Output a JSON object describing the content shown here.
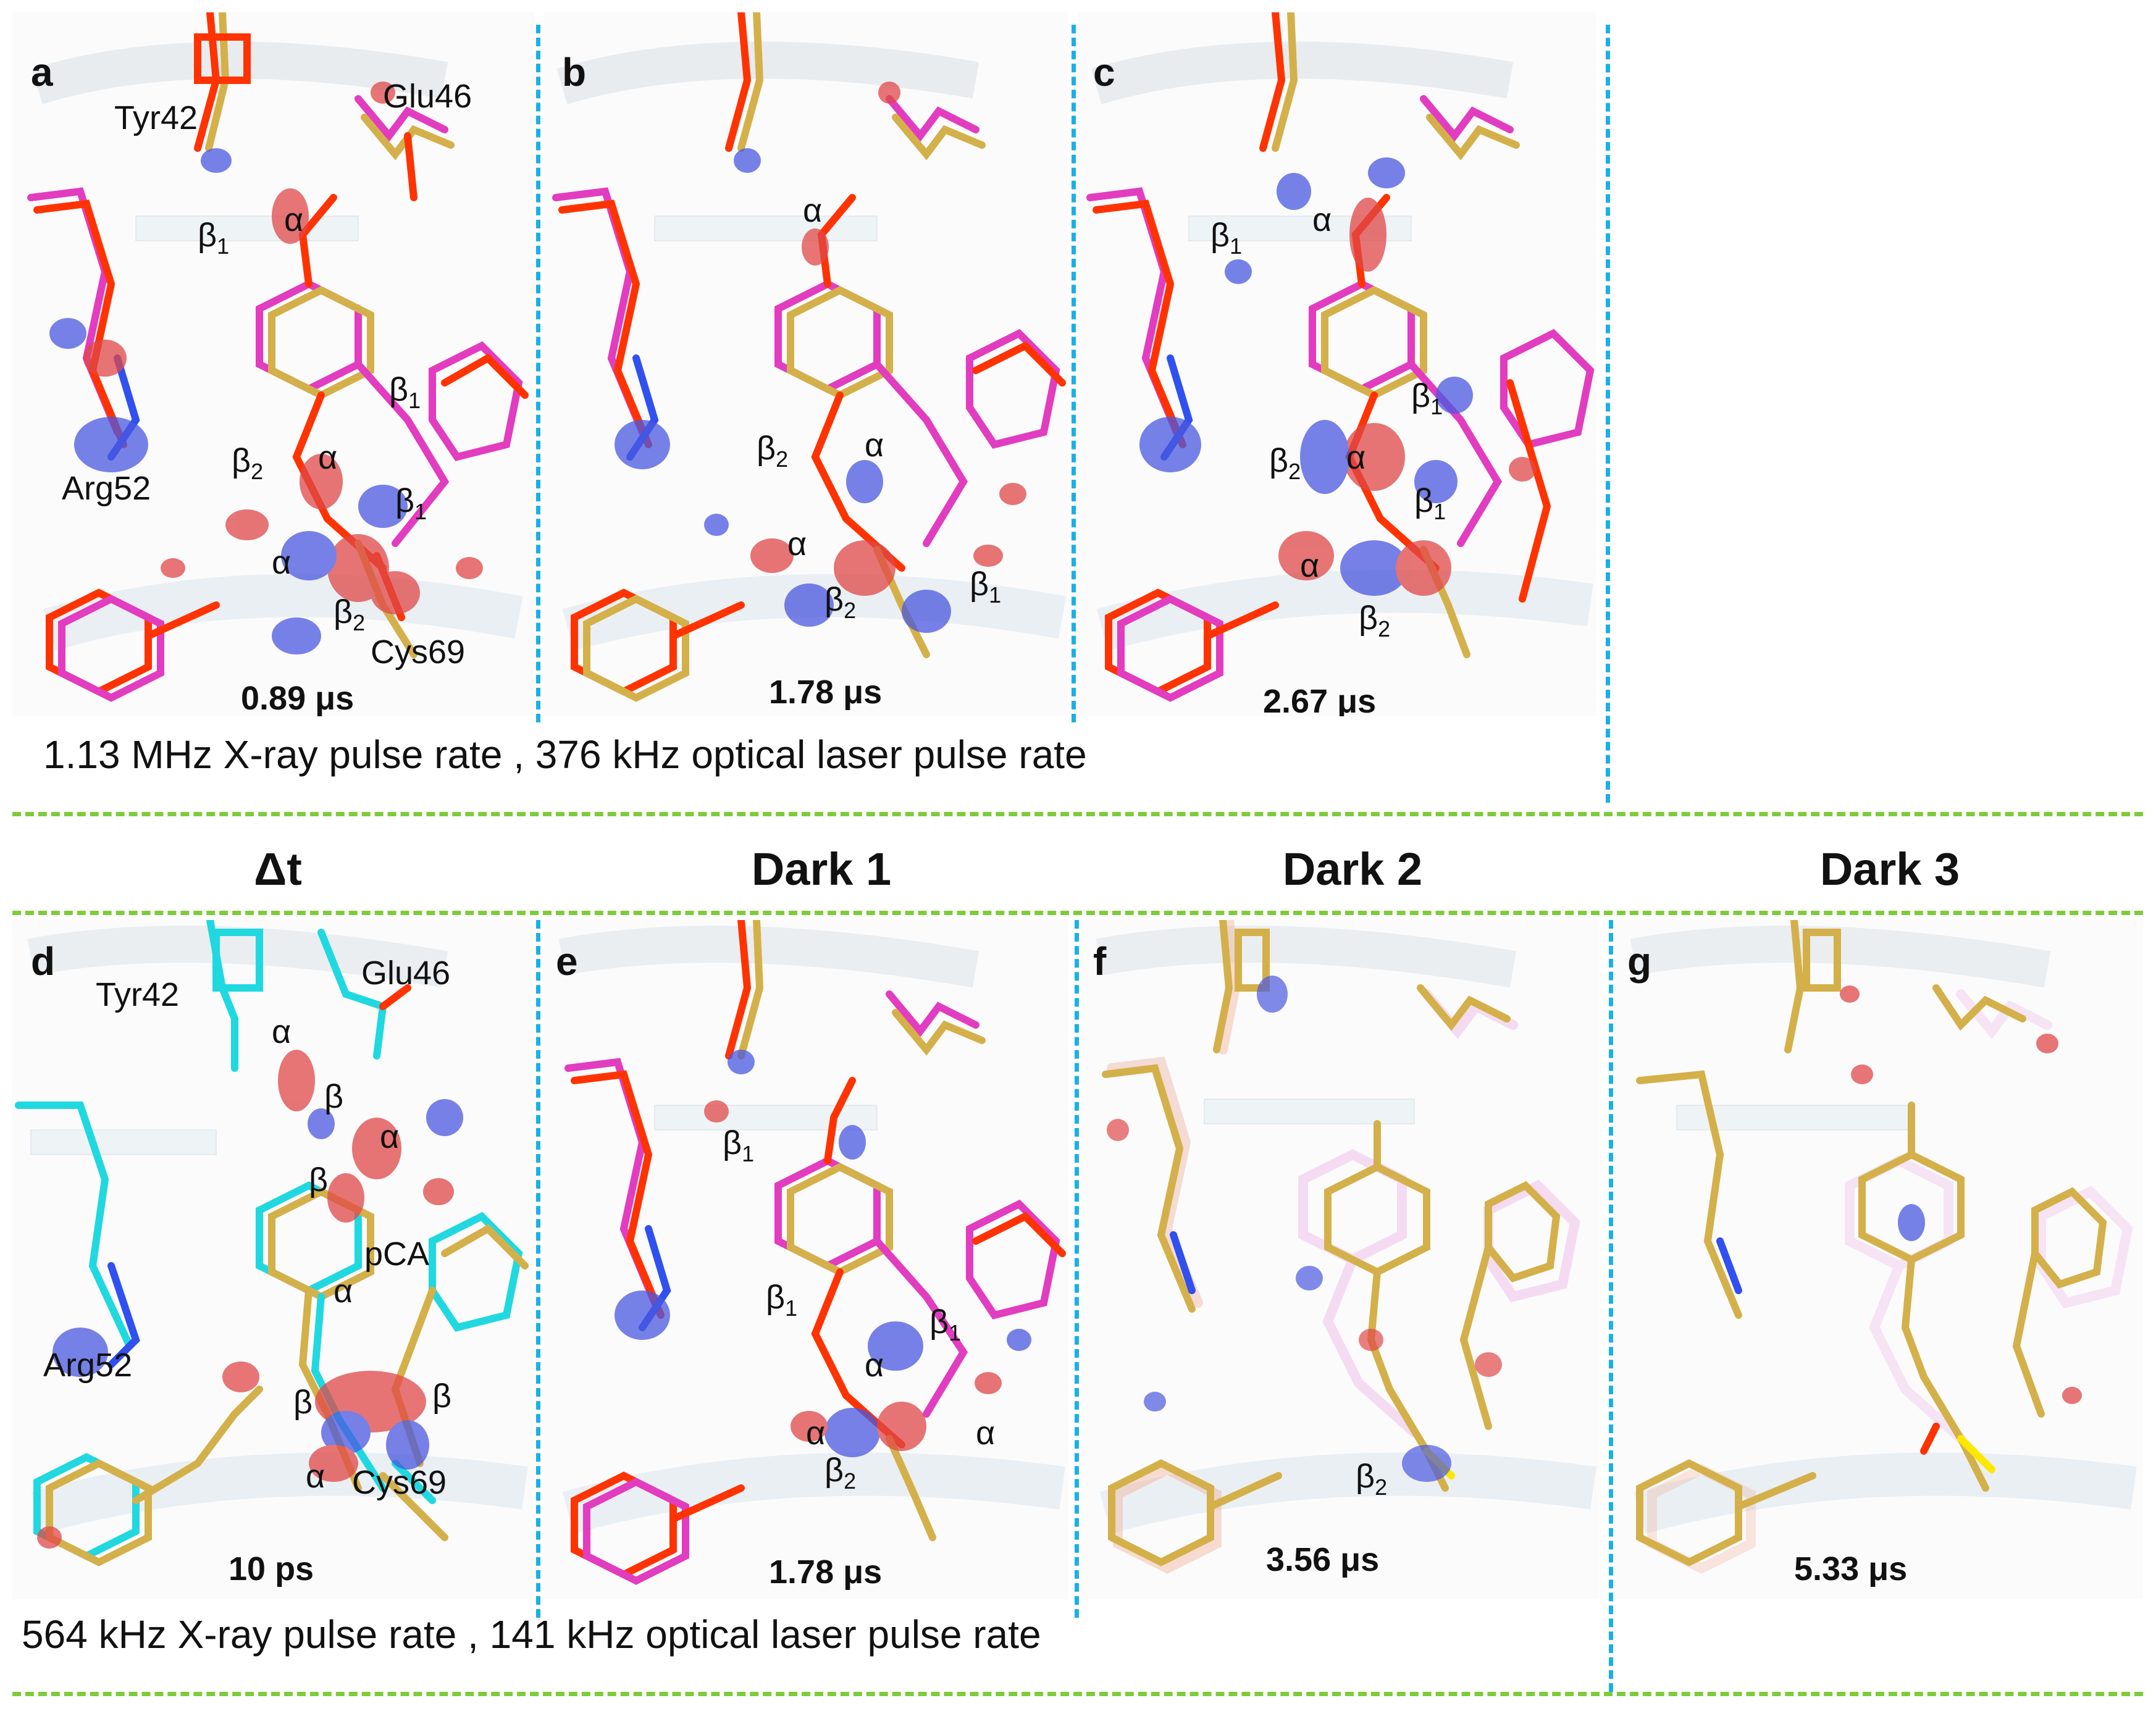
{
  "colors": {
    "separator_blue": "#1ab0e6",
    "separator_green": "#7ccc3a",
    "model_gold": "#d4b04a",
    "model_red": "#ff3300",
    "model_magenta": "#e23cc0",
    "model_cyan": "#20d8e0",
    "density_negative": "#e04848",
    "density_positive": "#4a58e0",
    "nitrogen_blue": "#3050f0"
  },
  "top_caption": "1.13 MHz X-ray pulse rate , 376 kHz optical laser pulse rate",
  "bottom_caption": "564 kHz X-ray pulse rate , 141 kHz optical laser pulse rate",
  "headers": {
    "d": "Δt",
    "e": "Dark 1",
    "f": "Dark 2",
    "g": "Dark 3"
  },
  "panels": {
    "a": {
      "letter": "a",
      "time": "0.89 μs",
      "tyr": "Tyr42",
      "glu": "Glu46",
      "arg": "Arg52",
      "cys": "Cys69",
      "greek": [
        "β1",
        "α",
        "β1",
        "β2",
        "α",
        "β1",
        "α",
        "β2"
      ]
    },
    "b": {
      "letter": "b",
      "time": "1.78 μs",
      "greek": [
        "α",
        "β2",
        "α",
        "α",
        "β2",
        "β1"
      ]
    },
    "c": {
      "letter": "c",
      "time": "2.67 μs",
      "greek": [
        "β1",
        "α",
        "β1",
        "β2",
        "α",
        "β1",
        "α",
        "β2"
      ]
    },
    "d": {
      "letter": "d",
      "time": "10 ps",
      "tyr": "Tyr42",
      "glu": "Glu46",
      "arg": "Arg52",
      "cys": "Cys69",
      "pca": "pCA",
      "greek": [
        "α",
        "β",
        "α",
        "β",
        "α",
        "β",
        "β",
        "α"
      ]
    },
    "e": {
      "letter": "e",
      "time": "1.78 μs",
      "greek": [
        "β1",
        "β1",
        "β1",
        "α",
        "α",
        "α",
        "β2"
      ]
    },
    "f": {
      "letter": "f",
      "time": "3.56 μs",
      "greek": [
        "β2"
      ]
    },
    "g": {
      "letter": "g",
      "time": "5.33 μs"
    }
  }
}
